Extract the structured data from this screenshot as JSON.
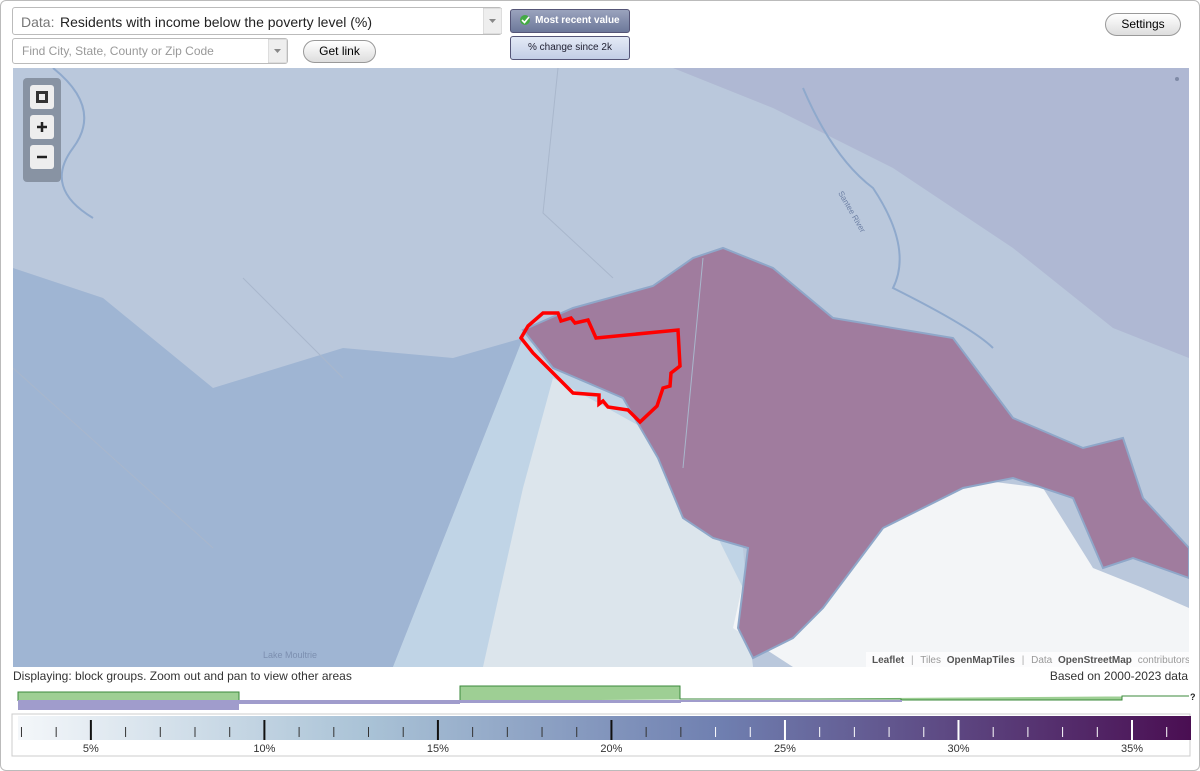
{
  "toolbar": {
    "data_label": "Data:",
    "data_value": "Residents with income below the poverty level (%)",
    "search_placeholder": "Find City, State, County or Zip Code",
    "get_link": "Get link",
    "mode_buttons": [
      "Most recent value",
      "% change since 2k"
    ],
    "settings": "Settings"
  },
  "map": {
    "labels": [
      "Santee River",
      "Lake Moultrie"
    ],
    "attribution": {
      "leaflet": "Leaflet",
      "separator": "|",
      "tiles_label": "Tiles",
      "tiles": "OpenMapTiles",
      "data_label": "Data",
      "data": "OpenStreetMap",
      "contributors": "contributors"
    }
  },
  "status": {
    "displaying": "Displaying: block groups. Zoom out and pan to view other areas",
    "based_on": "Based on 2000-2023 data"
  },
  "legend": {
    "range": [
      2.9,
      36.7
    ],
    "ticks": [
      {
        "value": 5,
        "label": "5%"
      },
      {
        "value": 10,
        "label": "10%"
      },
      {
        "value": 15,
        "label": "15%"
      },
      {
        "value": 20,
        "label": "20%"
      },
      {
        "value": 25,
        "label": "25%"
      },
      {
        "value": 30,
        "label": "30%"
      },
      {
        "value": 35,
        "label": "35%"
      }
    ],
    "minor_ticks": [
      3,
      4,
      6,
      7,
      8,
      9,
      11,
      12,
      13,
      14,
      16,
      17,
      18,
      19,
      21,
      22,
      23,
      24,
      26,
      27,
      28,
      29,
      31,
      32,
      33,
      34,
      36
    ],
    "help": "?"
  }
}
